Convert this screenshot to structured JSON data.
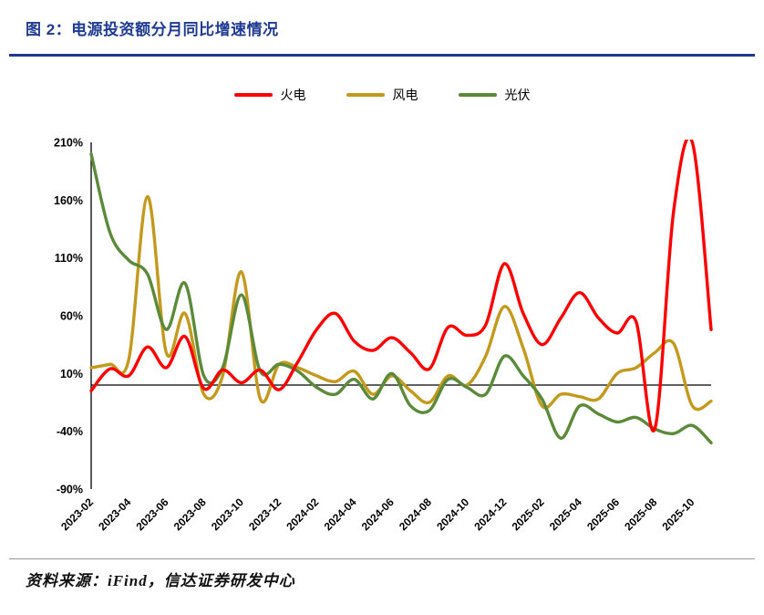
{
  "header": {
    "title": "图 2：电源投资额分月同比增速情况"
  },
  "footer": {
    "source": "资料来源：iFind，信达证券研发中心"
  },
  "colors": {
    "accent_blue": "#1F3A93",
    "axis": "#000000",
    "footer_rule": "#9A9A9A",
    "thermal_red": "#FF0000",
    "wind_gold": "#C49A1E",
    "solar_green": "#5A8A3A"
  },
  "chart_data": {
    "type": "line",
    "title": "图 2：电源投资额分月同比增速情况",
    "xlabel": "",
    "ylabel": "",
    "ylim": [
      -90,
      210
    ],
    "yticks": [
      210,
      160,
      110,
      60,
      10,
      -40,
      -90
    ],
    "y_suffix": "%",
    "xtick_step": 2,
    "grid": false,
    "zero_line": true,
    "legend_position": "top",
    "x": [
      "2023-02",
      "2023-03",
      "2023-04",
      "2023-05",
      "2023-06",
      "2023-07",
      "2023-08",
      "2023-09",
      "2023-10",
      "2023-11",
      "2023-12",
      "2024-01",
      "2024-02",
      "2024-03",
      "2024-04",
      "2024-05",
      "2024-06",
      "2024-07",
      "2024-08",
      "2024-09",
      "2024-10",
      "2024-11",
      "2024-12",
      "2025-01",
      "2025-02",
      "2025-03",
      "2025-04",
      "2025-05",
      "2025-06",
      "2025-07",
      "2025-08",
      "2025-09",
      "2025-10",
      "2025-11"
    ],
    "series": [
      {
        "name": "火电",
        "key": "thermal",
        "color": "#FF0000",
        "values": [
          -5,
          14,
          8,
          33,
          15,
          42,
          -3,
          13,
          2,
          13,
          -4,
          20,
          48,
          62,
          38,
          30,
          41,
          28,
          14,
          50,
          43,
          52,
          105,
          62,
          35,
          58,
          80,
          58,
          45,
          55,
          -38,
          150,
          210,
          48
        ]
      },
      {
        "name": "风电",
        "key": "wind",
        "color": "#C49A1E",
        "values": [
          15,
          18,
          22,
          163,
          28,
          62,
          -8,
          8,
          98,
          -12,
          18,
          15,
          8,
          3,
          12,
          -8,
          8,
          -5,
          -15,
          8,
          0,
          25,
          68,
          32,
          -18,
          -8,
          -10,
          -12,
          10,
          15,
          28,
          36,
          -18,
          -14
        ]
      },
      {
        "name": "光伏",
        "key": "solar",
        "color": "#5A8A3A",
        "values": [
          200,
          132,
          108,
          96,
          48,
          88,
          8,
          15,
          78,
          12,
          18,
          12,
          -2,
          -8,
          5,
          -12,
          10,
          -18,
          -22,
          5,
          -2,
          -8,
          25,
          8,
          -12,
          -46,
          -18,
          -25,
          -32,
          -28,
          -38,
          -42,
          -35,
          -50
        ]
      }
    ]
  }
}
